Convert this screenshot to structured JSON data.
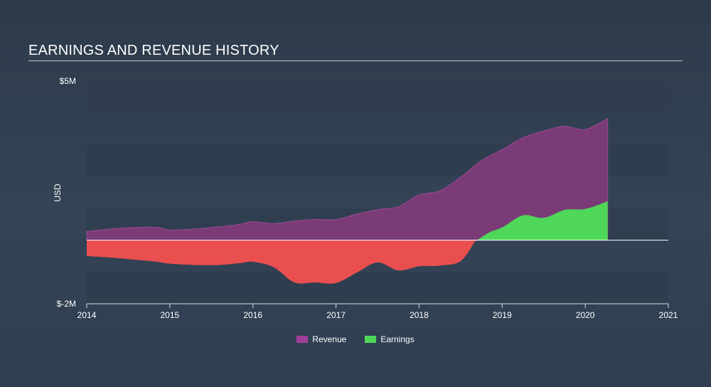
{
  "title": "EARNINGS AND REVENUE HISTORY",
  "colors": {
    "revenue": "#7b3b77",
    "earnings_positive": "#4fd75a",
    "earnings_negative": "#ea4f50",
    "legend_revenue": "#a23e9c",
    "legend_earnings": "#4fd75a",
    "band": "#2f3d4d"
  },
  "chart_data": {
    "type": "area",
    "title": "EARNINGS AND REVENUE HISTORY",
    "ylabel": "USD",
    "xlabel": "",
    "xlim": [
      2014,
      2021
    ],
    "ylim": [
      -2,
      5
    ],
    "y_tick_labels": [
      {
        "value": 5,
        "label": "$5M"
      },
      {
        "value": -2,
        "label": "$-2M"
      }
    ],
    "x_ticks": [
      2014,
      2015,
      2016,
      2017,
      2018,
      2019,
      2020,
      2021
    ],
    "grid": "horizontal bands",
    "legend_position": "bottom-center",
    "series": [
      {
        "name": "Revenue",
        "x": [
          2014.0,
          2014.3,
          2014.6,
          2014.85,
          2015.0,
          2015.3,
          2015.6,
          2015.85,
          2016.0,
          2016.25,
          2016.5,
          2016.75,
          2017.0,
          2017.25,
          2017.5,
          2017.75,
          2018.0,
          2018.25,
          2018.5,
          2018.75,
          2019.0,
          2019.25,
          2019.5,
          2019.75,
          2020.0,
          2020.27
        ],
        "values": [
          0.27,
          0.35,
          0.4,
          0.4,
          0.32,
          0.35,
          0.42,
          0.5,
          0.58,
          0.52,
          0.6,
          0.65,
          0.65,
          0.82,
          0.96,
          1.05,
          1.42,
          1.55,
          1.98,
          2.5,
          2.85,
          3.22,
          3.43,
          3.58,
          3.48,
          3.82
        ]
      },
      {
        "name": "Earnings",
        "x": [
          2014.0,
          2014.3,
          2014.6,
          2014.85,
          2015.0,
          2015.3,
          2015.6,
          2015.85,
          2016.0,
          2016.25,
          2016.5,
          2016.75,
          2017.0,
          2017.25,
          2017.5,
          2017.75,
          2018.0,
          2018.25,
          2018.5,
          2018.67,
          2018.85,
          2019.0,
          2019.25,
          2019.5,
          2019.75,
          2020.0,
          2020.27
        ],
        "values": [
          -0.5,
          -0.55,
          -0.62,
          -0.68,
          -0.74,
          -0.78,
          -0.78,
          -0.72,
          -0.68,
          -0.85,
          -1.33,
          -1.33,
          -1.35,
          -1.02,
          -0.7,
          -0.95,
          -0.82,
          -0.8,
          -0.66,
          -0.05,
          0.25,
          0.4,
          0.78,
          0.7,
          0.95,
          0.98,
          1.22
        ]
      }
    ]
  }
}
